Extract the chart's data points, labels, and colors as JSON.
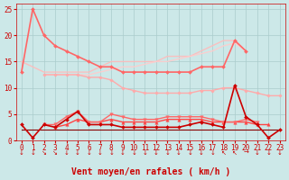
{
  "bg_color": "#cce8e8",
  "grid_color": "#aacccc",
  "xlabel": "Vent moyen/en rafales ( km/h )",
  "xlabel_color": "#cc0000",
  "xlabel_fontsize": 7,
  "tick_color": "#cc0000",
  "tick_fontsize": 5.5,
  "ylim": [
    0,
    26
  ],
  "xlim": [
    -0.5,
    23.5
  ],
  "yticks": [
    0,
    5,
    10,
    15,
    20,
    25
  ],
  "xticks": [
    0,
    1,
    2,
    3,
    4,
    5,
    6,
    7,
    8,
    9,
    10,
    11,
    12,
    13,
    14,
    15,
    16,
    17,
    18,
    19,
    20,
    21,
    22,
    23
  ],
  "series": [
    {
      "comment": "bright pink: 13->25 peak then down to ~14 at x=8",
      "y": [
        13,
        25,
        20,
        18,
        17,
        16,
        15,
        14,
        14,
        13,
        13,
        13,
        13,
        13,
        13,
        13,
        14,
        14,
        14,
        19,
        17,
        null,
        null,
        null
      ],
      "color": "#ff6666",
      "linewidth": 1.2,
      "marker": "D",
      "markersize": 2,
      "alpha": 1.0,
      "zorder": 3
    },
    {
      "comment": "light pink top band: starts ~15 at x=0, rises to ~19 at x=19, then drops",
      "y": [
        15,
        14,
        13,
        13,
        13,
        13,
        13,
        14,
        15,
        15,
        15,
        15,
        15,
        16,
        16,
        16,
        17,
        18,
        19,
        19,
        17,
        null,
        null,
        null
      ],
      "color": "#ffbbbb",
      "linewidth": 1.0,
      "marker": null,
      "alpha": 0.9,
      "zorder": 2
    },
    {
      "comment": "very light pink: starts ~15, rises slowly to ~19",
      "y": [
        null,
        null,
        12.5,
        12.5,
        12.5,
        12.5,
        12.5,
        13,
        13.5,
        14,
        14,
        14.5,
        15,
        15,
        15.5,
        16,
        16.5,
        17,
        18,
        18.5,
        17,
        null,
        null,
        null
      ],
      "color": "#ffcccc",
      "linewidth": 1.0,
      "marker": null,
      "alpha": 0.9,
      "zorder": 2
    },
    {
      "comment": "pink with dots: starts ~12.5 at x=2, fairly flat then rises",
      "y": [
        null,
        null,
        12.5,
        12.5,
        12.5,
        12.5,
        12,
        12,
        11.5,
        10,
        9.5,
        9,
        9,
        9,
        9,
        9,
        9.5,
        9.5,
        10,
        10,
        9.5,
        9,
        8.5,
        8.5
      ],
      "color": "#ffaaaa",
      "linewidth": 1.0,
      "marker": "D",
      "markersize": 1.8,
      "alpha": 1.0,
      "zorder": 3
    },
    {
      "comment": "dark red main with diamond markers - spikes at x=19",
      "y": [
        3,
        0.5,
        3,
        2.5,
        4,
        5.5,
        3,
        3,
        3,
        2.5,
        2.5,
        2.5,
        2.5,
        2.5,
        2.5,
        3,
        3.5,
        3,
        2.5,
        10.5,
        4.5,
        3,
        0.5,
        2
      ],
      "color": "#cc0000",
      "linewidth": 1.2,
      "marker": "D",
      "markersize": 2,
      "alpha": 1.0,
      "zorder": 5
    },
    {
      "comment": "medium red with up-triangles",
      "y": [
        null,
        null,
        null,
        2.5,
        3,
        4,
        3.5,
        3.5,
        4,
        3.5,
        3.5,
        3.5,
        3.5,
        4,
        4,
        4,
        4,
        3.5,
        3.5,
        3.5,
        3.5,
        3,
        3,
        null
      ],
      "color": "#ff4444",
      "linewidth": 1.0,
      "marker": "^",
      "markersize": 2.5,
      "alpha": 1.0,
      "zorder": 4
    },
    {
      "comment": "medium red with down-triangles",
      "y": [
        null,
        null,
        3,
        3,
        4.5,
        5.5,
        3.5,
        3.5,
        5,
        4.5,
        4,
        4,
        4,
        4.5,
        4.5,
        4.5,
        4.5,
        4,
        3.5,
        3.5,
        4,
        3.5,
        null,
        null
      ],
      "color": "#ff6666",
      "linewidth": 1.0,
      "marker": "v",
      "markersize": 2.5,
      "alpha": 1.0,
      "zorder": 4
    },
    {
      "comment": "dark brown flat line ~2",
      "y": [
        2,
        2,
        2,
        2,
        2,
        2,
        2,
        2,
        2,
        2,
        2,
        2,
        2,
        2,
        2,
        2,
        2,
        2,
        2,
        2,
        2,
        2,
        2,
        2
      ],
      "color": "#880000",
      "linewidth": 0.8,
      "marker": null,
      "alpha": 1.0,
      "zorder": 2
    }
  ],
  "arrow_symbols": [
    "↓",
    "↓",
    "↘",
    "↘",
    "↓",
    "↓",
    "↓",
    "↓",
    "↓",
    "↓",
    "↓",
    "↓",
    "↓",
    "↓",
    "↓",
    "↓",
    "↓",
    "↓",
    "↖",
    "↖",
    "→",
    "↓",
    "↓",
    "↓"
  ]
}
